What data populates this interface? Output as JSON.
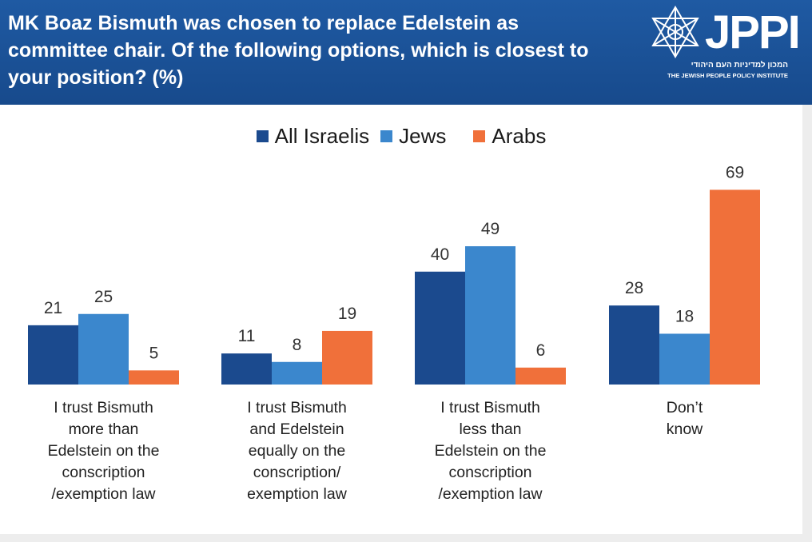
{
  "header": {
    "title": "MK Boaz Bismuth was chosen to replace Edelstein as committee chair. Of the following options, which is closest to your position? (%)",
    "logo": {
      "word": "JPPI",
      "hebrew": "המכון למדיניות העם היהודי",
      "english": "THE JEWISH PEOPLE POLICY INSTITUTE"
    }
  },
  "colors": {
    "header_bg": "#1f5aa3",
    "all_israelis": "#1b4a8e",
    "jews": "#3b87cd",
    "arabs": "#f0703a"
  },
  "chart_data": {
    "type": "bar",
    "title": "MK Boaz Bismuth was chosen to replace Edelstein as committee chair. Of the following options, which is closest to your position? (%)",
    "legend_position": "top-center",
    "grid": false,
    "ylim": [
      0,
      69
    ],
    "categories": [
      "I trust Bismuth more than Edelstein on the conscription /exemption law",
      "I trust Bismuth and Edelstein equally on the conscription/ exemption law",
      "I trust Bismuth less than Edelstein on the conscription /exemption law",
      "Don’t know"
    ],
    "category_lines": [
      [
        "I trust Bismuth",
        "more than",
        "Edelstein on the",
        "conscription",
        "/exemption law"
      ],
      [
        "I trust Bismuth",
        "and Edelstein",
        "equally on the",
        "conscription/",
        "exemption law"
      ],
      [
        "I trust Bismuth",
        "less than",
        "Edelstein on the",
        "conscription",
        "/exemption law"
      ],
      [
        "Don’t",
        "know"
      ]
    ],
    "series": [
      {
        "name": "All Israelis",
        "color": "#1b4a8e",
        "values": [
          21,
          11,
          40,
          28
        ]
      },
      {
        "name": "Jews",
        "color": "#3b87cd",
        "values": [
          25,
          8,
          49,
          18
        ]
      },
      {
        "name": "Arabs",
        "color": "#f0703a",
        "values": [
          5,
          19,
          6,
          69
        ]
      }
    ]
  }
}
